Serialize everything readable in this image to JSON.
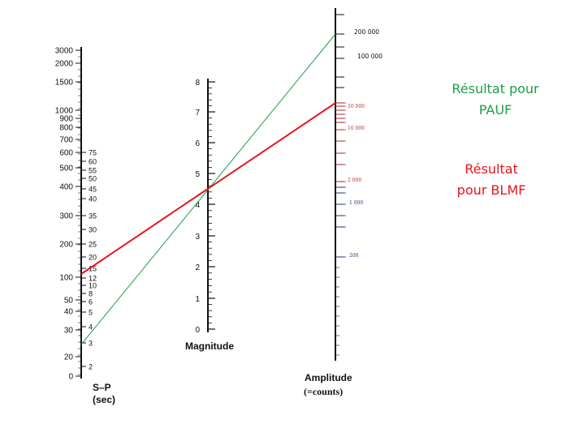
{
  "diagram": {
    "type": "nomogram",
    "sp_axis": {
      "title": "S–P",
      "unit": "(sec)",
      "left_labels": [
        "3000",
        "2000",
        "1500",
        "1000",
        "900",
        "800",
        "700",
        "600",
        "500",
        "400",
        "300",
        "200",
        "100",
        "50",
        "40",
        "30",
        "20",
        "0"
      ],
      "right_labels": [
        "75",
        "60",
        "55",
        "50",
        "45",
        "40",
        "35",
        "30",
        "25",
        "20",
        "15",
        "12",
        "10",
        "8",
        "6",
        "5",
        "4",
        "3",
        "2"
      ]
    },
    "magnitude_axis": {
      "title": "Magnitude",
      "labels": [
        "8",
        "7",
        "6",
        "5",
        "4",
        "3",
        "2",
        "1",
        "0"
      ]
    },
    "amplitude_axis": {
      "title": "Amplitude",
      "unit": "(=counts)",
      "labels_black": [
        "200 000",
        "100 000"
      ],
      "labels_red": [
        "20 000",
        "10 000",
        "2 000"
      ],
      "labels_blue": [
        "1 000",
        "200"
      ]
    },
    "results": [
      {
        "label": "Résultat pour PAUF",
        "lines": [
          "Résultat pour",
          "PAUF"
        ],
        "color": "#1e9e4a"
      },
      {
        "label": "Résultat pour BLMF",
        "lines": [
          "Résultat",
          "pour BLMF"
        ],
        "color": "#e8141b"
      }
    ]
  }
}
